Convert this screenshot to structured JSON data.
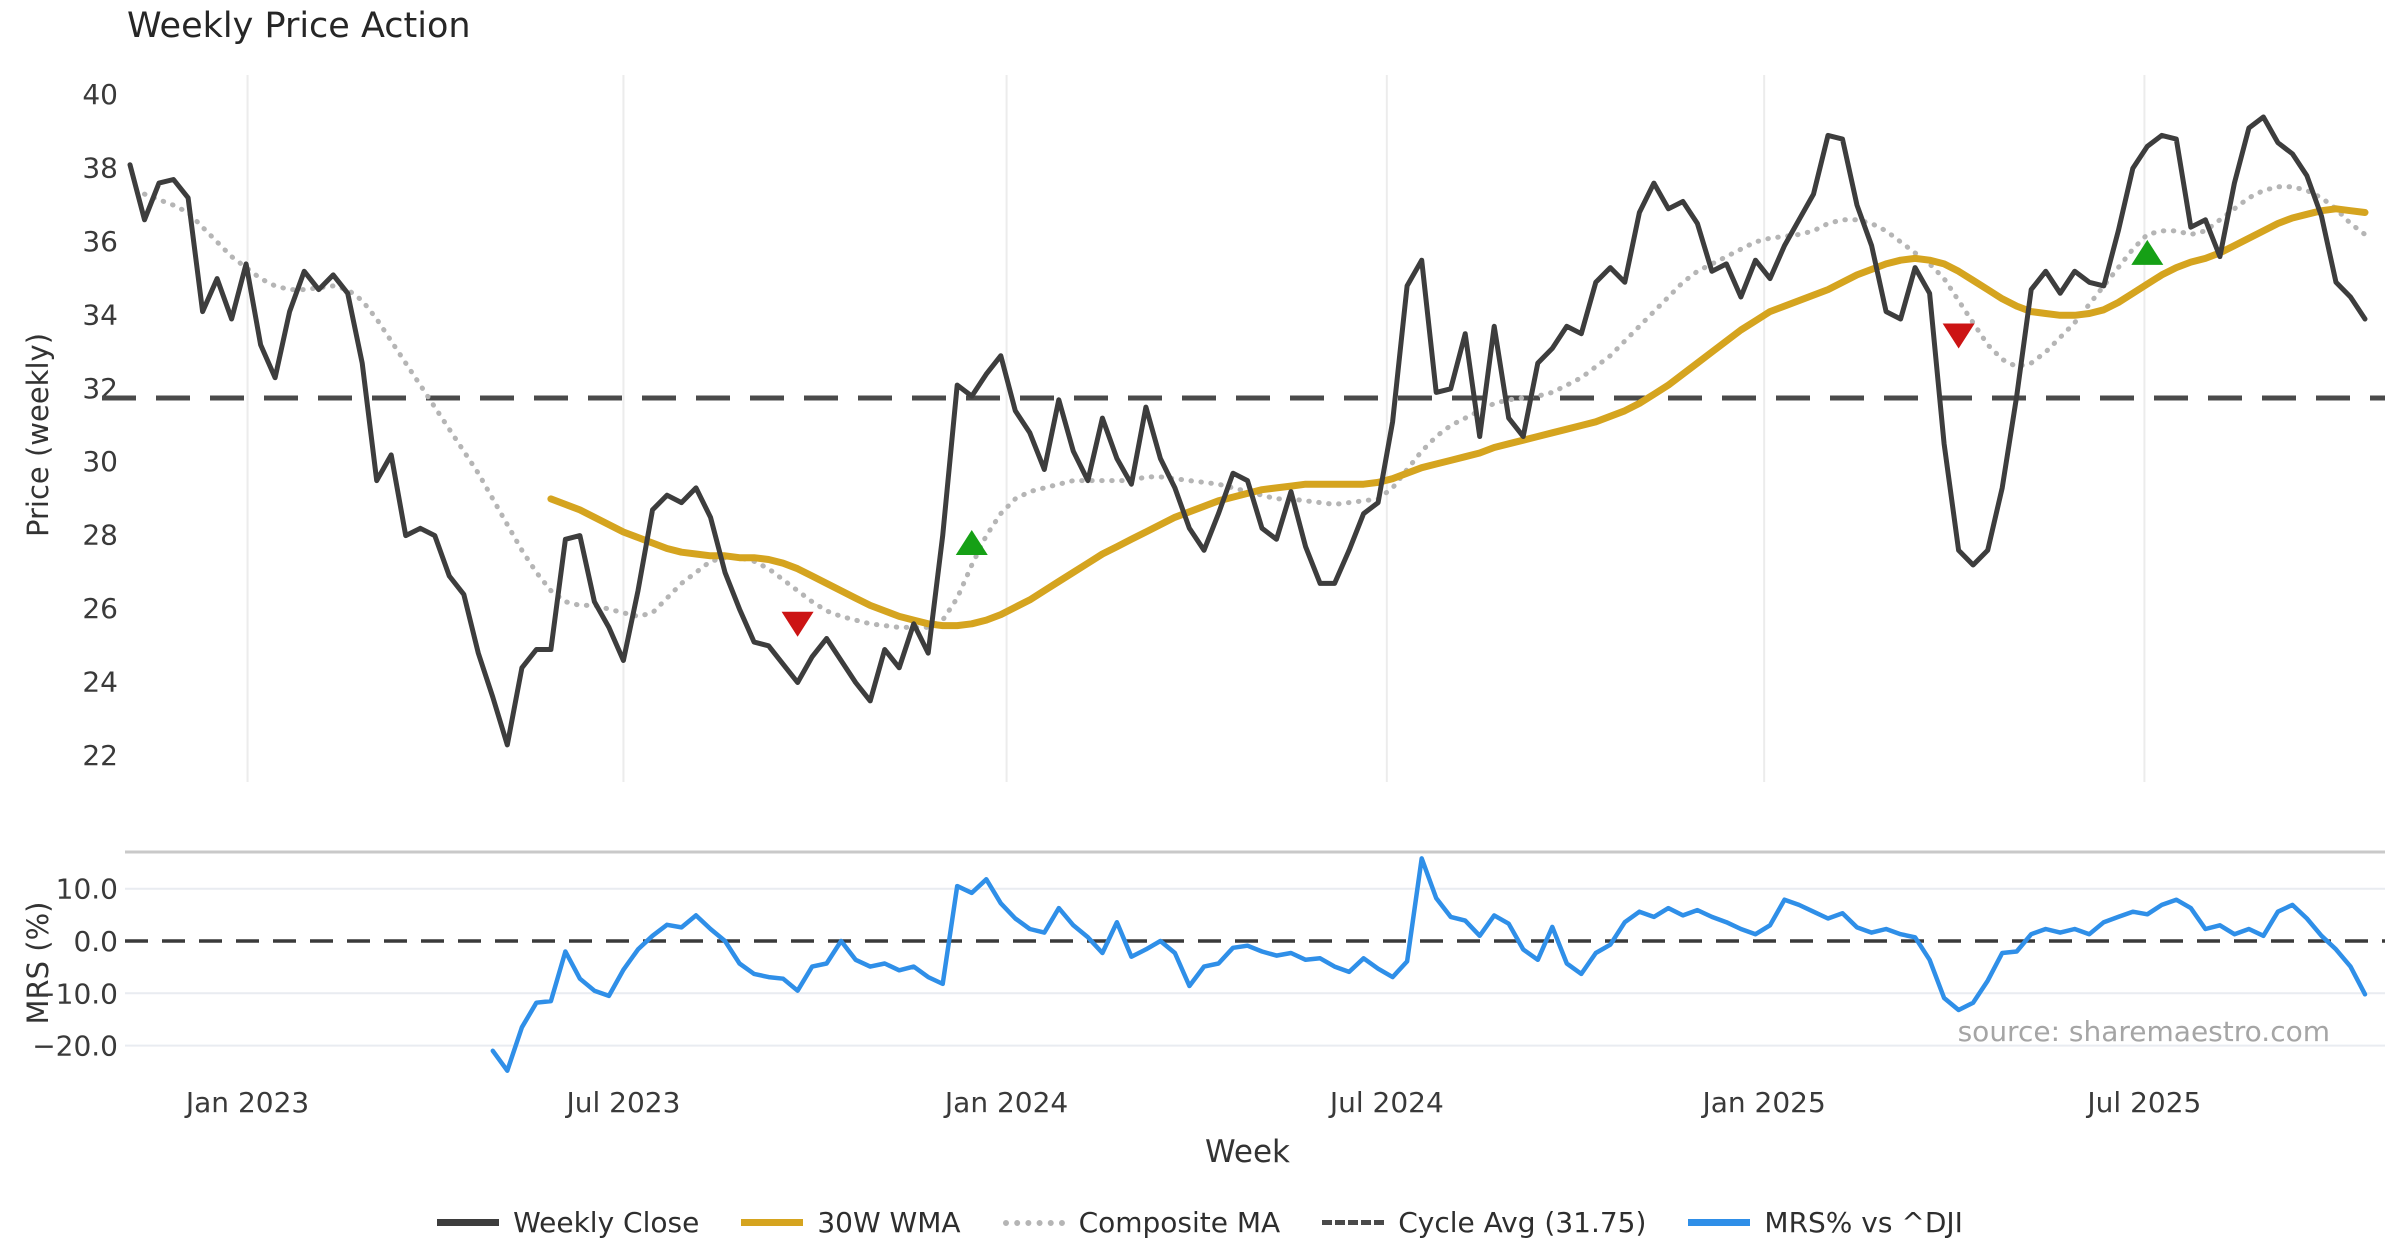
{
  "title": "Weekly Price Action",
  "source_note": "source: sharemaestro.com",
  "chart_data": {
    "type": "line",
    "title": "Weekly Price Action",
    "xlabel": "Week",
    "x_unit": "week_index",
    "n_weeks": 155,
    "x_ticks": [
      {
        "week": 8.1,
        "label": "Jan 2023"
      },
      {
        "week": 34.0,
        "label": "Jul 2023"
      },
      {
        "week": 60.4,
        "label": "Jan 2024"
      },
      {
        "week": 86.6,
        "label": "Jul 2024"
      },
      {
        "week": 112.6,
        "label": "Jan 2025"
      },
      {
        "week": 138.8,
        "label": "Jul 2025"
      }
    ],
    "price_panel": {
      "ylabel": "Price (weekly)",
      "ylim": [
        21.3,
        40.6
      ],
      "yticks": [
        40,
        38,
        36,
        34,
        32,
        30,
        28,
        26,
        24,
        22
      ],
      "cycle_avg": 31.75,
      "grid": "vertical-light"
    },
    "mrs_panel": {
      "ylabel": "MRS (%)",
      "ylim": [
        -26,
        17
      ],
      "yticks": [
        {
          "v": 10,
          "label": "10.0"
        },
        {
          "v": 0,
          "label": "0.0"
        },
        {
          "v": -10,
          "label": "−10.0"
        },
        {
          "v": -20,
          "label": "−20.0"
        }
      ],
      "zero_line": 0,
      "grid": "horizontal-light"
    },
    "series": {
      "weekly_close": [
        38.1,
        36.6,
        37.6,
        37.7,
        37.2,
        34.1,
        35.0,
        33.9,
        35.4,
        33.2,
        32.3,
        34.1,
        35.2,
        34.7,
        35.1,
        34.6,
        32.7,
        29.5,
        30.2,
        28.0,
        28.2,
        28.0,
        26.9,
        26.4,
        24.8,
        23.6,
        22.3,
        24.4,
        24.9,
        24.9,
        27.9,
        28.0,
        26.2,
        25.5,
        24.6,
        26.5,
        28.7,
        29.1,
        28.9,
        29.3,
        28.5,
        27.0,
        26.0,
        25.1,
        25.0,
        24.5,
        24.0,
        24.7,
        25.2,
        24.6,
        24.0,
        23.5,
        24.9,
        24.4,
        25.6,
        24.8,
        28.0,
        32.1,
        31.8,
        32.4,
        32.9,
        31.4,
        30.8,
        29.8,
        31.7,
        30.3,
        29.5,
        31.2,
        30.1,
        29.4,
        31.5,
        30.1,
        29.3,
        28.2,
        27.6,
        28.6,
        29.7,
        29.5,
        28.2,
        27.9,
        29.2,
        27.7,
        26.7,
        26.7,
        27.6,
        28.6,
        28.9,
        31.1,
        34.8,
        35.5,
        31.9,
        32.0,
        33.5,
        30.7,
        33.7,
        31.2,
        30.7,
        32.7,
        33.1,
        33.7,
        33.5,
        34.9,
        35.3,
        34.9,
        36.8,
        37.6,
        36.9,
        37.1,
        36.5,
        35.2,
        35.4,
        34.5,
        35.5,
        35.0,
        35.9,
        36.6,
        37.3,
        38.9,
        38.8,
        37.0,
        35.9,
        34.1,
        33.9,
        35.3,
        34.6,
        30.5,
        27.6,
        27.2,
        27.6,
        29.3,
        31.8,
        34.7,
        35.2,
        34.6,
        35.2,
        34.9,
        34.8,
        36.3,
        38.0,
        38.6,
        38.9,
        38.8,
        36.4,
        36.6,
        35.6,
        37.6,
        39.1,
        39.4,
        38.7,
        38.4,
        37.8,
        36.7,
        34.9,
        34.5,
        33.9
      ],
      "wma_30": [
        null,
        null,
        null,
        null,
        null,
        null,
        null,
        null,
        null,
        null,
        null,
        null,
        null,
        null,
        null,
        null,
        null,
        null,
        null,
        null,
        null,
        null,
        null,
        null,
        null,
        null,
        null,
        null,
        null,
        29.0,
        28.85,
        28.7,
        28.5,
        28.3,
        28.1,
        27.95,
        27.8,
        27.65,
        27.55,
        27.5,
        27.45,
        27.45,
        27.4,
        27.4,
        27.35,
        27.25,
        27.1,
        26.9,
        26.7,
        26.5,
        26.3,
        26.1,
        25.95,
        25.8,
        25.7,
        25.6,
        25.55,
        25.55,
        25.6,
        25.7,
        25.85,
        26.05,
        26.25,
        26.5,
        26.75,
        27.0,
        27.25,
        27.5,
        27.7,
        27.9,
        28.1,
        28.3,
        28.5,
        28.65,
        28.8,
        28.95,
        29.05,
        29.15,
        29.25,
        29.3,
        29.35,
        29.4,
        29.4,
        29.4,
        29.4,
        29.4,
        29.45,
        29.55,
        29.7,
        29.85,
        29.95,
        30.05,
        30.15,
        30.25,
        30.4,
        30.5,
        30.6,
        30.7,
        30.8,
        30.9,
        31.0,
        31.1,
        31.25,
        31.4,
        31.6,
        31.85,
        32.1,
        32.4,
        32.7,
        33.0,
        33.3,
        33.6,
        33.85,
        34.1,
        34.25,
        34.4,
        34.55,
        34.7,
        34.9,
        35.1,
        35.25,
        35.4,
        35.5,
        35.55,
        35.5,
        35.4,
        35.2,
        34.95,
        34.7,
        34.45,
        34.25,
        34.1,
        34.05,
        34.0,
        34.0,
        34.05,
        34.15,
        34.35,
        34.6,
        34.85,
        35.1,
        35.3,
        35.45,
        35.55,
        35.7,
        35.9,
        36.1,
        36.3,
        36.5,
        36.65,
        36.75,
        36.85,
        36.9,
        36.85,
        36.8
      ],
      "composite_ma": [
        null,
        37.3,
        37.15,
        37.0,
        36.8,
        36.4,
        36.0,
        35.6,
        35.3,
        35.0,
        34.8,
        34.7,
        34.7,
        34.75,
        34.8,
        34.7,
        34.4,
        33.9,
        33.3,
        32.7,
        32.1,
        31.5,
        30.9,
        30.3,
        29.7,
        29.0,
        28.3,
        27.6,
        27.0,
        26.5,
        26.2,
        26.1,
        26.1,
        26.0,
        25.9,
        25.8,
        25.9,
        26.3,
        26.7,
        27.0,
        27.3,
        27.4,
        27.4,
        27.3,
        27.1,
        26.8,
        26.5,
        26.2,
        25.95,
        25.8,
        25.7,
        25.6,
        25.55,
        25.5,
        25.5,
        25.5,
        25.7,
        26.3,
        27.2,
        28.0,
        28.6,
        29.0,
        29.2,
        29.3,
        29.4,
        29.5,
        29.5,
        29.5,
        29.5,
        29.5,
        29.6,
        29.6,
        29.55,
        29.5,
        29.45,
        29.4,
        29.3,
        29.2,
        29.1,
        29.0,
        29.0,
        28.95,
        28.9,
        28.85,
        28.9,
        28.95,
        29.0,
        29.3,
        29.8,
        30.3,
        30.7,
        31.0,
        31.2,
        31.4,
        31.6,
        31.7,
        31.75,
        31.8,
        31.9,
        32.1,
        32.3,
        32.6,
        32.9,
        33.3,
        33.7,
        34.1,
        34.5,
        34.9,
        35.2,
        35.4,
        35.6,
        35.8,
        36.0,
        36.1,
        36.15,
        36.2,
        36.3,
        36.5,
        36.6,
        36.6,
        36.5,
        36.3,
        36.0,
        35.7,
        35.4,
        35.0,
        34.4,
        33.8,
        33.2,
        32.8,
        32.6,
        32.7,
        33.0,
        33.4,
        33.8,
        34.3,
        34.8,
        35.3,
        35.8,
        36.2,
        36.3,
        36.3,
        36.2,
        36.3,
        36.6,
        36.9,
        37.2,
        37.4,
        37.5,
        37.5,
        37.4,
        37.2,
        36.9,
        36.5,
        36.2
      ],
      "mrs_pct": [
        null,
        null,
        null,
        null,
        null,
        null,
        null,
        null,
        null,
        null,
        null,
        null,
        null,
        null,
        null,
        null,
        null,
        null,
        null,
        null,
        null,
        null,
        null,
        null,
        null,
        -21.0,
        -24.8,
        -16.5,
        -11.8,
        -11.5,
        -2.0,
        -7.2,
        -9.5,
        -10.5,
        -5.5,
        -1.6,
        1.0,
        3.1,
        2.6,
        4.9,
        2.3,
        0.0,
        -4.3,
        -6.3,
        -6.9,
        -7.2,
        -9.5,
        -4.9,
        -4.3,
        0.0,
        -3.6,
        -4.9,
        -4.3,
        -5.6,
        -4.9,
        -6.9,
        -8.2,
        10.5,
        9.2,
        11.8,
        7.2,
        4.3,
        2.3,
        1.6,
        6.3,
        3.0,
        0.7,
        -2.3,
        3.6,
        -3.0,
        -1.6,
        0.0,
        -2.3,
        -8.6,
        -4.9,
        -4.3,
        -1.3,
        -0.9,
        -2.0,
        -2.8,
        -2.3,
        -3.6,
        -3.3,
        -4.9,
        -5.9,
        -3.3,
        -5.3,
        -6.9,
        -3.9,
        15.8,
        8.2,
        4.6,
        3.9,
        1.0,
        4.9,
        3.3,
        -1.6,
        -3.6,
        2.7,
        -4.3,
        -6.3,
        -2.3,
        -0.7,
        3.6,
        5.6,
        4.6,
        6.3,
        4.9,
        5.9,
        4.6,
        3.6,
        2.3,
        1.3,
        3.0,
        7.9,
        6.9,
        5.6,
        4.3,
        5.3,
        2.6,
        1.6,
        2.3,
        1.3,
        0.7,
        -3.6,
        -10.9,
        -13.2,
        -11.8,
        -7.6,
        -2.3,
        -2.0,
        1.3,
        2.3,
        1.6,
        2.3,
        1.3,
        3.6,
        4.6,
        5.6,
        5.1,
        6.9,
        7.9,
        6.3,
        2.3,
        3.0,
        1.3,
        2.3,
        1.0,
        5.6,
        6.9,
        4.3,
        1.0,
        -1.6,
        -4.9,
        -10.2
      ]
    },
    "markers": [
      {
        "kind": "sell",
        "shape": "triangle-down",
        "week": 46,
        "value": 25.6,
        "color": "#cc1414"
      },
      {
        "kind": "buy",
        "shape": "triangle-up",
        "week": 58,
        "value": 27.8,
        "color": "#16a016"
      },
      {
        "kind": "sell",
        "shape": "triangle-down",
        "week": 126,
        "value": 33.45,
        "color": "#cc1414"
      },
      {
        "kind": "buy",
        "shape": "triangle-up",
        "week": 139,
        "value": 35.7,
        "color": "#16a016"
      }
    ],
    "legend": [
      {
        "label": "Weekly Close",
        "style": "solid",
        "color": "#3d3d3d"
      },
      {
        "label": "30W WMA",
        "style": "solid",
        "color": "#d5a41f"
      },
      {
        "label": "Composite MA",
        "style": "dotted",
        "color": "#b5b5b5"
      },
      {
        "label": "Cycle Avg (31.75)",
        "style": "dashed",
        "color": "#4a4a4a"
      },
      {
        "label": "MRS% vs ^DJI",
        "style": "solid",
        "color": "#2f8fe8"
      }
    ],
    "colors": {
      "weekly_close": "#3d3d3d",
      "wma_30": "#d5a41f",
      "composite_ma": "#b5b5b5",
      "cycle_avg": "#4a4a4a",
      "mrs": "#2f8fe8",
      "grid": "#ececec",
      "mrs_grid": "#e9ecf1",
      "panel_border": "#c9c9c9",
      "tick_text": "#3a3a3a",
      "source_text": "#a5a5a5"
    }
  }
}
